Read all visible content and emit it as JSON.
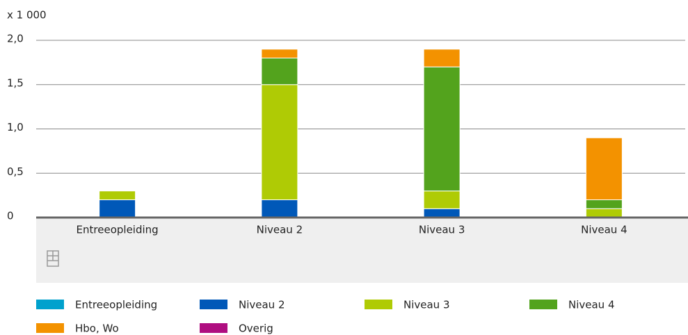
{
  "chart_data": {
    "type": "stacked_bar",
    "y_axis_label": "x 1 000",
    "categories": [
      "Entreeopleiding",
      "Niveau 2",
      "Niveau 3",
      "Niveau 4"
    ],
    "series": [
      {
        "name": "Entreeopleiding",
        "color": "#00a1cd",
        "values": [
          0,
          0,
          0,
          0
        ]
      },
      {
        "name": "Niveau 2",
        "color": "#0058b8",
        "values": [
          0.2,
          0.2,
          0.1,
          0
        ]
      },
      {
        "name": "Niveau 3",
        "color": "#afcb05",
        "values": [
          0.1,
          1.3,
          0.2,
          0.1
        ]
      },
      {
        "name": "Niveau 4",
        "color": "#53a31d",
        "values": [
          0,
          0.3,
          1.4,
          0.1
        ]
      },
      {
        "name": "Hbo, Wo",
        "color": "#f39200",
        "values": [
          0,
          0.1,
          0.2,
          0.7
        ]
      },
      {
        "name": "Overig",
        "color": "#af0e80",
        "values": [
          0,
          0,
          0,
          0
        ]
      }
    ],
    "ylim": [
      0,
      2
    ],
    "yticks": [
      0,
      {
        "value": 0.5,
        "label": "0,5"
      },
      {
        "value": 1,
        "label": "1,0"
      },
      {
        "value": 1.5,
        "label": "1,5"
      },
      {
        "value": 2,
        "label": "2,0"
      }
    ],
    "grid": true
  }
}
